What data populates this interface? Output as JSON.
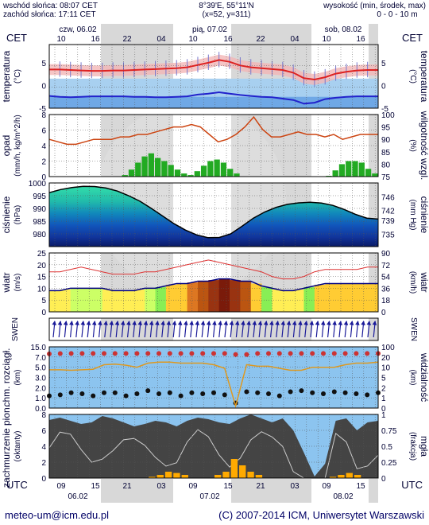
{
  "header": {
    "sunrise": "wschód słońca: 08:07 CET",
    "sunset": "zachód słońca: 17:11 CET",
    "coords": "8°39'E, 55°11'N",
    "grid": "(x=52,  y=311)",
    "height_title": "wysokość (min, środek, max)",
    "height_values": "0 - 0 - 10 m"
  },
  "timeline": {
    "tz_left": "CET",
    "tz_right": "CET",
    "tz_bottom_left": "UTC",
    "tz_bottom_right": "UTC",
    "days_top": [
      "czw, 06.02",
      "pią, 07.02",
      "sob, 08.02"
    ],
    "hours_top": [
      "10",
      "16",
      "22",
      "04",
      "10",
      "16",
      "22",
      "04",
      "10",
      "16"
    ],
    "hours_bottom": [
      "09",
      "15",
      "21",
      "03",
      "09",
      "15",
      "21",
      "03",
      "09",
      "15"
    ],
    "days_bottom": [
      "06.02",
      "07.02",
      "08.02"
    ]
  },
  "panels": {
    "temperature": {
      "left_label": "temperatura",
      "left_unit": "(°C)",
      "right_label": "temperatura",
      "right_unit": "(°C)"
    },
    "precip": {
      "left_label": "opad",
      "left_unit": "(mm/h, kg/m^2/h)",
      "right_label": "wilgotność wzgl.",
      "right_unit": "(%)"
    },
    "pressure": {
      "left_label": "ciśnienie",
      "left_unit": "(hPa)",
      "right_label": "ciśnienie",
      "right_unit": "(mm Hg)"
    },
    "wind": {
      "left_label": "wiatr",
      "left_unit": "(m/s)",
      "right_label": "wiatr",
      "right_unit": "(km/h)"
    },
    "winddir": {
      "left_label": "SWEN",
      "right_label": "SWEN"
    },
    "visibility": {
      "left_label": "chm. rozciągł.",
      "left_unit": "(km)",
      "right_label": "widzialność",
      "right_unit": "(km)"
    },
    "clouds": {
      "left_label": "zachmurzenie pion.",
      "left_unit": "(oktanty)",
      "right_label": "mgła",
      "right_unit": "(frakcja)"
    }
  },
  "footer": {
    "email": "meteo-um@icm.edu.pl",
    "copyright": "(C) 2007-2014 ICM, Uniwersytet Warszawski"
  },
  "chart_data": [
    {
      "type": "line",
      "name": "temperature",
      "ylim": [
        -5,
        9
      ],
      "y_ticks": [
        -5,
        0,
        5
      ],
      "series": [
        {
          "name": "max",
          "color": "#dd2222",
          "values": [
            3.5,
            3.5,
            3.4,
            3.3,
            3.2,
            3.2,
            3.3,
            3.3,
            3.4,
            3.5,
            3.6,
            3.7,
            3.8,
            4.0,
            4.5,
            5.0,
            5.6,
            5.2,
            4.4,
            4.0,
            3.8,
            3.6,
            3.4,
            2.8,
            1.6,
            1.3,
            1.8,
            2.6,
            3.0,
            3.3,
            3.4,
            3.4
          ]
        },
        {
          "name": "min",
          "color": "#2222cc",
          "values": [
            -2.3,
            -2.5,
            -2.6,
            -2.5,
            -2.4,
            -2.4,
            -2.4,
            -2.4,
            -2.5,
            -2.5,
            -2.6,
            -2.6,
            -2.5,
            -2.4,
            -2.0,
            -1.8,
            -1.5,
            -1.8,
            -2.1,
            -2.3,
            -2.5,
            -2.6,
            -2.9,
            -3.2,
            -4.0,
            -3.8,
            -3.0,
            -2.7,
            -2.5,
            -2.4,
            -2.4,
            -2.4
          ]
        }
      ]
    },
    {
      "type": "bar",
      "name": "precipitation",
      "ylim": [
        0,
        8
      ],
      "y_ticks": [
        0,
        2,
        4,
        6,
        8
      ],
      "values": [
        0,
        0,
        0,
        0,
        0,
        0,
        0,
        0,
        0,
        0,
        0.05,
        0.2,
        0.9,
        1.8,
        2.6,
        3.0,
        2.4,
        2.0,
        1.5,
        0.9,
        0.4,
        0.2,
        0.7,
        1.4,
        2.0,
        2.2,
        1.8,
        1.0,
        0.4,
        0,
        0,
        0,
        0,
        0,
        0,
        0,
        0,
        0,
        0,
        0,
        0,
        0,
        0.1,
        0.8,
        1.6,
        2.0,
        2.0,
        1.8,
        1.0,
        0.4
      ],
      "humidity": {
        "ylim": [
          75,
          100
        ],
        "y_ticks": [
          75,
          80,
          85,
          90,
          95,
          100
        ],
        "color": "#cc4411",
        "values": [
          90,
          89,
          88,
          88,
          89,
          90,
          90,
          90,
          91,
          91,
          92,
          92,
          93,
          94,
          95,
          95,
          96,
          95,
          92,
          89,
          90,
          92,
          95,
          99,
          94,
          91,
          91,
          92,
          93,
          92,
          92,
          91,
          92,
          90,
          91,
          92,
          92,
          92
        ]
      }
    },
    {
      "type": "area",
      "name": "pressure",
      "ylim": [
        975,
        1000
      ],
      "y_ticks": [
        980,
        985,
        990,
        995,
        1000
      ],
      "y2_ticks": [
        735,
        739,
        742,
        746
      ],
      "values": [
        996.2,
        997.4,
        998.2,
        998.7,
        998.6,
        998.0,
        996.8,
        995.0,
        992.8,
        990.0,
        987.0,
        984.0,
        981.5,
        979.6,
        978.5,
        978.6,
        980.0,
        983.0,
        986.2,
        988.6,
        990.4,
        991.6,
        992.2,
        992.4,
        992.1,
        991.2,
        989.6,
        987.7,
        986.2,
        985.8
      ]
    },
    {
      "type": "line",
      "name": "wind",
      "ylim": [
        0,
        25
      ],
      "y_ticks": [
        0,
        5,
        10,
        15,
        20,
        25
      ],
      "y2_ticks": [
        0,
        18,
        36,
        54,
        72,
        90
      ],
      "series": [
        {
          "name": "speed",
          "color": "#000080",
          "values": [
            9,
            9,
            10,
            10,
            10,
            10,
            9,
            9,
            9,
            10,
            10,
            11,
            12,
            12,
            13,
            13,
            14,
            14,
            13,
            13,
            11,
            10,
            9,
            9,
            10,
            11,
            12,
            12,
            12,
            12,
            12,
            12
          ]
        },
        {
          "name": "gust",
          "color": "#dd3333",
          "values": [
            17,
            17,
            18,
            19,
            18,
            17,
            16,
            16,
            16,
            17,
            17,
            18,
            19,
            20,
            21,
            22,
            21,
            20,
            19,
            18,
            17,
            15,
            14,
            14,
            15,
            17,
            18,
            18,
            18,
            18,
            19,
            19
          ]
        }
      ]
    },
    {
      "type": "scatter",
      "name": "visibility",
      "ylim": [
        0,
        15
      ],
      "y_ticks": [
        0.0,
        1.0,
        2.0,
        3.0,
        5.0,
        7.0,
        15.0
      ],
      "y2_ticks": [
        0,
        1,
        2,
        5,
        10,
        20,
        100
      ],
      "series": [
        {
          "name": "red",
          "color": "#cc3333",
          "values": [
            9.5,
            9.7,
            9.8,
            9.8,
            9.8,
            9.8,
            9.8,
            9.8,
            9.8,
            9.8,
            9.8,
            9.8,
            9.8,
            9.8,
            9.8,
            9.8,
            9.8,
            9.0,
            9.0,
            9.8,
            9.8,
            9.8,
            9.8,
            9.8,
            9.8,
            9.8,
            9.8,
            9.8,
            9.8,
            9.8,
            9.8
          ]
        },
        {
          "name": "black",
          "color": "#111111",
          "values": [
            1.2,
            1.3,
            1.5,
            1.4,
            1.2,
            1.5,
            1.5,
            1.2,
            1.4,
            1.7,
            1.4,
            1.5,
            1.2,
            1.5,
            1.4,
            1.5,
            1.3,
            0.5,
            1.6,
            1.5,
            1.4,
            1.2,
            1.6,
            1.7,
            1.5,
            1.4,
            1.6,
            1.5,
            1.4,
            1.3,
            1.5
          ]
        },
        {
          "name": "orange",
          "color": "#dd9922",
          "values": [
            4.5,
            4.5,
            4.4,
            4.5,
            4.6,
            5.5,
            5.6,
            5.4,
            5.0,
            5.8,
            6.0,
            6.0,
            5.8,
            5.8,
            5.8,
            5.5,
            4.8,
            0.2,
            5.5,
            5.2,
            5.2,
            4.8,
            4.4,
            4.4,
            5.0,
            5.0,
            5.0,
            5.5,
            5.8,
            5.8,
            6.0
          ]
        }
      ]
    },
    {
      "type": "area",
      "name": "clouds",
      "ylim": [
        0,
        8
      ],
      "y_ticks": [
        0,
        2,
        4,
        6,
        8
      ],
      "y2_ticks": [
        0,
        0.25,
        0.5,
        0.75,
        1
      ],
      "values": [
        7.3,
        7.6,
        7.2,
        6.8,
        7.0,
        7.8,
        7.5,
        7.0,
        6.5,
        6.8,
        7.2,
        7.0,
        6.5,
        7.2,
        7.6,
        7.4,
        7.0,
        6.8,
        7.5,
        8.0,
        7.5,
        7.0,
        7.5,
        6.0,
        3.2,
        0.2,
        1.8,
        7.2,
        7.5,
        6.0,
        7.0,
        7.2
      ],
      "fog": [
        0,
        0,
        0,
        0,
        0,
        0,
        0,
        0,
        0,
        0,
        0,
        0,
        0.02,
        0.05,
        0.1,
        0.08,
        0.05,
        0,
        0,
        0,
        0.05,
        0.1,
        0.3,
        0.2,
        0.1,
        0.05,
        0,
        0,
        0,
        0,
        0,
        0,
        0,
        0,
        0.02,
        0.05,
        0.08,
        0.05,
        0,
        0
      ]
    }
  ]
}
